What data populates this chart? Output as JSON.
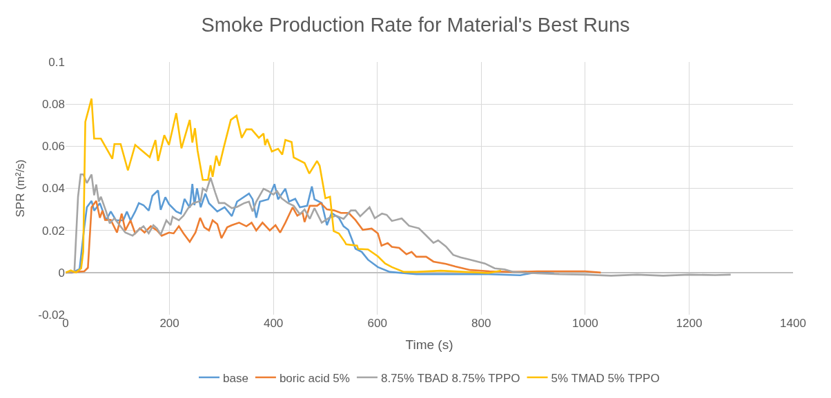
{
  "chart_data": {
    "type": "line",
    "title": "Smoke Production Rate for Material's Best Runs",
    "xlabel": "Time (s)",
    "ylabel": "SPR (m²/s)",
    "xlim": [
      0,
      1400
    ],
    "xticks": [
      0,
      200,
      400,
      600,
      800,
      1000,
      1200,
      1400
    ],
    "ylim": [
      -0.02,
      0.1
    ],
    "yticks": [
      -0.02,
      0,
      0.02,
      0.04,
      0.06,
      0.08,
      0.1
    ],
    "grid": true,
    "legend": "bottom",
    "marker": "none",
    "line_style": "solid",
    "series": [
      {
        "name": "base",
        "color": "#5b9bd5",
        "x": [
          0,
          13,
          27,
          36,
          41,
          50,
          55,
          66,
          78,
          87,
          97,
          111,
          118,
          125,
          134,
          141,
          150,
          160,
          167,
          178,
          183,
          192,
          199,
          213,
          222,
          229,
          239,
          244,
          248,
          253,
          260,
          269,
          276,
          292,
          306,
          320,
          330,
          353,
          360,
          367,
          374,
          390,
          402,
          409,
          423,
          430,
          442,
          451,
          465,
          474,
          479,
          493,
          503,
          512,
          526,
          535,
          544,
          558,
          570,
          582,
          601,
          624,
          675,
          768,
          814,
          875,
          908,
          940
        ],
        "values": [
          0,
          0,
          0.0017,
          0.0215,
          0.031,
          0.034,
          0.0294,
          0.033,
          0.0248,
          0.029,
          0.0248,
          0.0248,
          0.029,
          0.0248,
          0.029,
          0.033,
          0.032,
          0.0294,
          0.0364,
          0.039,
          0.0298,
          0.0358,
          0.0325,
          0.029,
          0.028,
          0.035,
          0.0308,
          0.0421,
          0.032,
          0.04,
          0.031,
          0.0375,
          0.0329,
          0.029,
          0.031,
          0.0268,
          0.0337,
          0.0375,
          0.0348,
          0.026,
          0.0337,
          0.0348,
          0.042,
          0.0348,
          0.0398,
          0.0337,
          0.035,
          0.031,
          0.0317,
          0.0409,
          0.0348,
          0.033,
          0.0225,
          0.0283,
          0.026,
          0.022,
          0.0203,
          0.0113,
          0.0098,
          0.0061,
          0.0026,
          0.0003,
          -0.0008,
          -0.0008,
          -0.0008,
          -0.0013,
          0.0003,
          -0.0005
        ]
      },
      {
        "name": "boric acid 5%",
        "color": "#ed7d31",
        "x": [
          0,
          36,
          43,
          50,
          59,
          66,
          71,
          76,
          87,
          99,
          108,
          115,
          125,
          134,
          143,
          152,
          164,
          176,
          185,
          199,
          208,
          218,
          227,
          239,
          250,
          259,
          267,
          276,
          283,
          292,
          300,
          311,
          320,
          334,
          348,
          358,
          367,
          379,
          393,
          404,
          413,
          423,
          437,
          446,
          456,
          460,
          470,
          484,
          491,
          503,
          517,
          530,
          545,
          558,
          572,
          589,
          601,
          608,
          620,
          628,
          642,
          656,
          666,
          675,
          694,
          708,
          732,
          750,
          779,
          816,
          862,
          908,
          955,
          1000,
          1030
        ],
        "values": [
          0,
          0.0006,
          0.0023,
          0.031,
          0.034,
          0.026,
          0.0294,
          0.025,
          0.025,
          0.019,
          0.028,
          0.02,
          0.0248,
          0.0186,
          0.021,
          0.019,
          0.022,
          0.02,
          0.0175,
          0.019,
          0.0186,
          0.022,
          0.0186,
          0.0146,
          0.019,
          0.026,
          0.0215,
          0.02,
          0.0248,
          0.023,
          0.0163,
          0.0215,
          0.0225,
          0.0237,
          0.022,
          0.0237,
          0.02,
          0.0237,
          0.02,
          0.0225,
          0.019,
          0.0237,
          0.031,
          0.027,
          0.0286,
          0.024,
          0.0317,
          0.0317,
          0.033,
          0.03,
          0.0295,
          0.0283,
          0.0283,
          0.0249,
          0.0203,
          0.0209,
          0.0186,
          0.0128,
          0.014,
          0.0122,
          0.0117,
          0.0087,
          0.0098,
          0.0075,
          0.0075,
          0.0052,
          0.0041,
          0.0029,
          0.0012,
          0.0006,
          0.0003,
          0.0006,
          0.0006,
          0.0006,
          0
        ]
      },
      {
        "name": "8.75% TBAD 8.75% TPPO",
        "color": "#a5a5a5",
        "x": [
          0,
          17,
          24,
          29,
          34,
          41,
          50,
          55,
          59,
          64,
          68,
          78,
          85,
          94,
          104,
          115,
          129,
          141,
          150,
          160,
          169,
          176,
          183,
          194,
          202,
          206,
          218,
          227,
          236,
          246,
          260,
          264,
          271,
          279,
          288,
          295,
          306,
          313,
          320,
          330,
          344,
          353,
          360,
          367,
          381,
          390,
          400,
          407,
          416,
          428,
          439,
          451,
          460,
          470,
          479,
          493,
          507,
          521,
          535,
          549,
          558,
          567,
          585,
          595,
          609,
          618,
          628,
          647,
          661,
          680,
          694,
          708,
          717,
          732,
          746,
          760,
          779,
          807,
          826,
          845,
          862,
          908,
          950,
          1000,
          1050,
          1100,
          1150,
          1200,
          1250,
          1280
        ],
        "values": [
          0,
          0.0006,
          0.036,
          0.0466,
          0.0466,
          0.0425,
          0.0466,
          0.0367,
          0.0418,
          0.0337,
          0.036,
          0.029,
          0.0234,
          0.0258,
          0.0225,
          0.019,
          0.0175,
          0.0203,
          0.022,
          0.0186,
          0.0225,
          0.0209,
          0.018,
          0.0248,
          0.0225,
          0.0265,
          0.0248,
          0.027,
          0.0306,
          0.033,
          0.034,
          0.04,
          0.0387,
          0.045,
          0.038,
          0.033,
          0.033,
          0.0318,
          0.0306,
          0.0312,
          0.033,
          0.0337,
          0.029,
          0.0337,
          0.0398,
          0.0387,
          0.037,
          0.0387,
          0.0352,
          0.033,
          0.0317,
          0.0277,
          0.03,
          0.0255,
          0.0306,
          0.0237,
          0.026,
          0.027,
          0.0255,
          0.0295,
          0.0295,
          0.0267,
          0.031,
          0.0258,
          0.028,
          0.0274,
          0.0245,
          0.0257,
          0.0222,
          0.021,
          0.0176,
          0.0141,
          0.0153,
          0.0124,
          0.0084,
          0.0072,
          0.0061,
          0.0043,
          0.002,
          0.0015,
          0.0003,
          -0.0004,
          -0.0008,
          -0.001,
          -0.0015,
          -0.001,
          -0.0015,
          -0.001,
          -0.0012,
          -0.001
        ]
      },
      {
        "name": "5% TMAD 5% TPPO",
        "color": "#ffc000",
        "x": [
          0,
          10,
          20,
          30,
          34,
          38,
          50,
          55,
          68,
          90,
          94,
          106,
          120,
          134,
          162,
          173,
          178,
          190,
          199,
          213,
          223,
          239,
          244,
          249,
          254,
          264,
          274,
          279,
          283,
          290,
          296,
          304,
          318,
          329,
          339,
          348,
          358,
          372,
          381,
          384,
          388,
          397,
          409,
          417,
          423,
          435,
          439,
          460,
          469,
          484,
          489,
          500,
          509,
          516,
          526,
          537,
          540,
          561,
          563,
          582,
          601,
          615,
          628,
          651,
          675,
          722,
          768,
          814,
          838
        ],
        "values": [
          0,
          0.001,
          0,
          0.002,
          0.01,
          0.0716,
          0.0826,
          0.0636,
          0.0636,
          0.054,
          0.061,
          0.061,
          0.0485,
          0.0606,
          0.0548,
          0.0629,
          0.053,
          0.0652,
          0.0606,
          0.0757,
          0.059,
          0.0725,
          0.0617,
          0.0686,
          0.058,
          0.044,
          0.044,
          0.051,
          0.0455,
          0.0555,
          0.0507,
          0.059,
          0.0725,
          0.0745,
          0.064,
          0.068,
          0.068,
          0.064,
          0.066,
          0.0605,
          0.0634,
          0.0575,
          0.0588,
          0.056,
          0.063,
          0.062,
          0.0547,
          0.052,
          0.047,
          0.053,
          0.0507,
          0.0353,
          0.036,
          0.0197,
          0.0186,
          0.0147,
          0.0134,
          0.0128,
          0.0112,
          0.011,
          0.0077,
          0.0043,
          0.0026,
          0.0003,
          0.0003,
          0.0009,
          0.0003,
          -0.0002,
          0.0009
        ]
      }
    ]
  }
}
